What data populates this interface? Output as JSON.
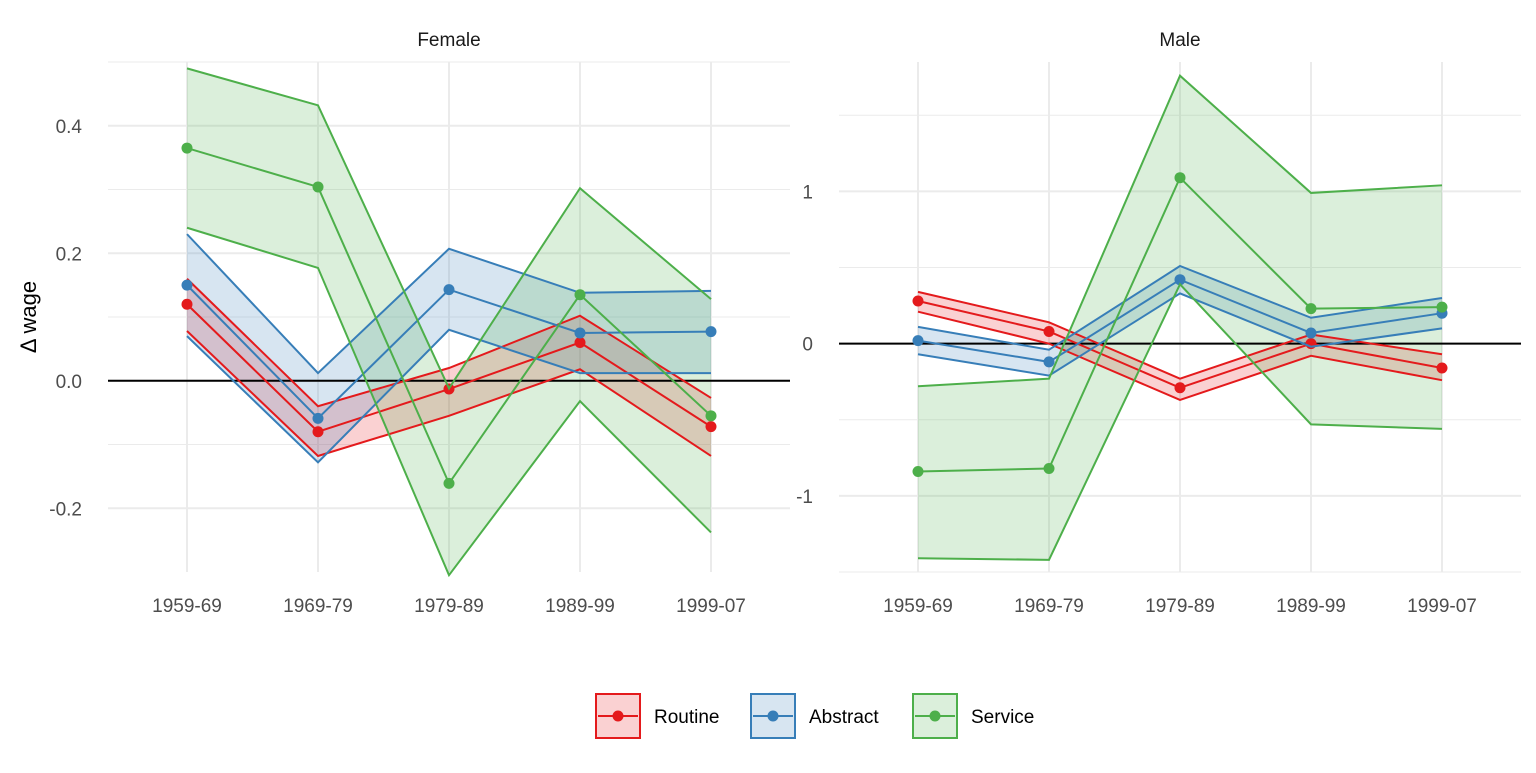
{
  "chart_data": {
    "type": "line",
    "ylabel": "Δ wage",
    "categories": [
      "1959-69",
      "1969-79",
      "1979-89",
      "1989-99",
      "1999-07"
    ],
    "colors": {
      "Routine": "#e41a1c",
      "Abstract": "#377eb8",
      "Service": "#4daf4a"
    },
    "legend_position": "bottom",
    "legend": [
      "Routine",
      "Abstract",
      "Service"
    ],
    "zero_line": true,
    "grid": true,
    "panels": [
      {
        "title": "Female",
        "ylim": [
          -0.3,
          0.5
        ],
        "yticks": [
          -0.2,
          0.0,
          0.2,
          0.4
        ],
        "ytick_labels": [
          "-0.2",
          "0.0",
          "0.2",
          "0.4"
        ],
        "series": [
          {
            "name": "Routine",
            "values": [
              0.12,
              -0.08,
              -0.013,
              0.06,
              -0.072
            ],
            "lower": [
              0.078,
              -0.118,
              -0.055,
              0.018,
              -0.118
            ],
            "upper": [
              0.16,
              -0.04,
              0.02,
              0.102,
              -0.027
            ]
          },
          {
            "name": "Abstract",
            "values": [
              0.15,
              -0.059,
              0.143,
              0.075,
              0.077
            ],
            "lower": [
              0.07,
              -0.128,
              0.08,
              0.012,
              0.012
            ],
            "upper": [
              0.23,
              0.012,
              0.207,
              0.138,
              0.141
            ]
          },
          {
            "name": "Service",
            "values": [
              0.365,
              0.304,
              -0.161,
              0.135,
              -0.055
            ],
            "lower": [
              0.24,
              0.177,
              -0.305,
              -0.032,
              -0.238
            ],
            "upper": [
              0.49,
              0.432,
              -0.012,
              0.302,
              0.128
            ]
          }
        ]
      },
      {
        "title": "Male",
        "ylim": [
          -1.5,
          1.85
        ],
        "yticks": [
          -1,
          0,
          1
        ],
        "ytick_labels": [
          "-1",
          "0",
          "1"
        ],
        "series": [
          {
            "name": "Routine",
            "values": [
              0.28,
              0.08,
              -0.29,
              0.0,
              -0.16
            ],
            "lower": [
              0.21,
              0.0,
              -0.37,
              -0.08,
              -0.24
            ],
            "upper": [
              0.34,
              0.14,
              -0.23,
              0.06,
              -0.07
            ]
          },
          {
            "name": "Abstract",
            "values": [
              0.02,
              -0.12,
              0.42,
              0.07,
              0.2
            ],
            "lower": [
              -0.07,
              -0.21,
              0.33,
              -0.02,
              0.1
            ],
            "upper": [
              0.11,
              -0.04,
              0.51,
              0.17,
              0.3
            ]
          },
          {
            "name": "Service",
            "values": [
              -0.84,
              -0.82,
              1.09,
              0.23,
              0.24
            ],
            "lower": [
              -1.41,
              -1.42,
              0.39,
              -0.53,
              -0.56
            ],
            "upper": [
              -0.28,
              -0.23,
              1.76,
              0.99,
              1.04
            ]
          }
        ]
      }
    ]
  }
}
